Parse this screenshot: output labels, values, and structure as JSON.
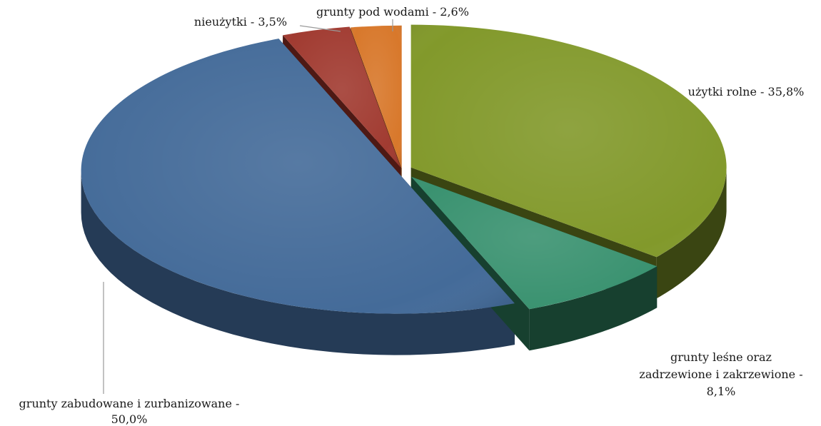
{
  "chart_data": {
    "type": "pie",
    "style": "3d-exploded",
    "title": "",
    "slices": [
      {
        "name": "użytki rolne",
        "value": 35.8,
        "label_lines": [
          "użytki rolne - 35,8%"
        ],
        "color": "#82992b",
        "side": "#3a4512"
      },
      {
        "name": "grunty leśne oraz zadrzewione i zakrzewione",
        "value": 8.1,
        "label_lines": [
          "grunty leśne  oraz",
          "zadrzewione i zakrzewione -",
          "8,1%"
        ],
        "color": "#3a9270",
        "side": "#17402f"
      },
      {
        "name": "grunty zabudowane i zurbanizowane",
        "value": 50.0,
        "label_lines": [
          "grunty zabudowane i zurbanizowane -",
          "50,0%"
        ],
        "color": "#446b99",
        "side": "#253b56"
      },
      {
        "name": "nieużytki",
        "value": 3.5,
        "label_lines": [
          "nieużytki - 3,5%"
        ],
        "color": "#a13b31",
        "side": "#4e1914"
      },
      {
        "name": "grunty pod wodami",
        "value": 2.6,
        "label_lines": [
          "grunty pod wodami - 2,6%"
        ],
        "color": "#d8782b",
        "side": "#6b3a12"
      }
    ]
  }
}
